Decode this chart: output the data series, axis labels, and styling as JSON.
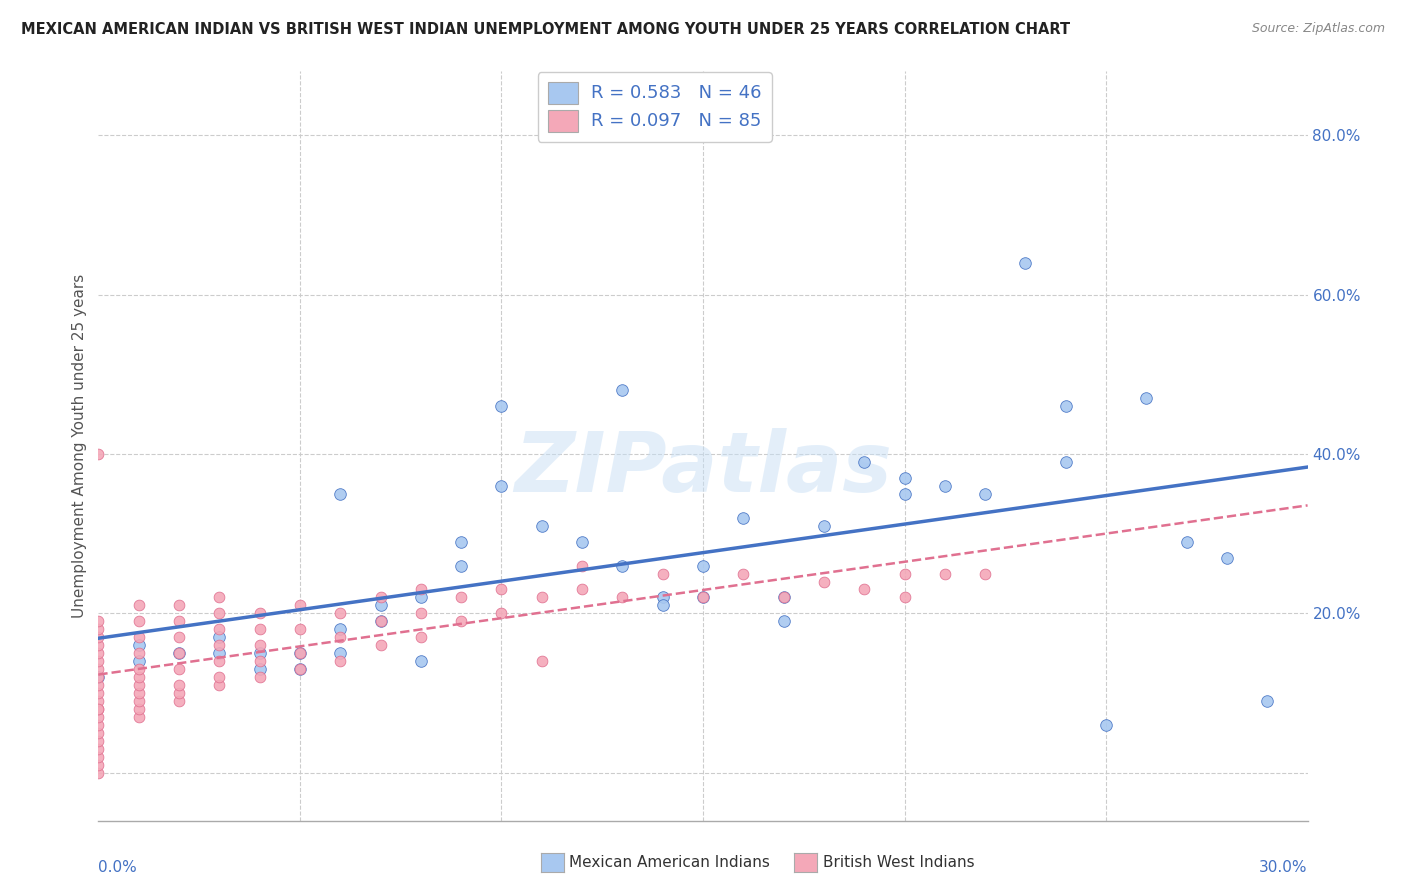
{
  "title": "MEXICAN AMERICAN INDIAN VS BRITISH WEST INDIAN UNEMPLOYMENT AMONG YOUTH UNDER 25 YEARS CORRELATION CHART",
  "source": "Source: ZipAtlas.com",
  "ylabel": "Unemployment Among Youth under 25 years",
  "xlim": [
    0.0,
    0.3
  ],
  "ylim": [
    -0.06,
    0.88
  ],
  "color_blue": "#A8C8F0",
  "color_pink": "#F4A8B8",
  "color_blue_line": "#4472C4",
  "color_pink_line": "#E07090",
  "color_text_blue": "#4472C4",
  "legend_label1": "Mexican American Indians",
  "legend_label2": "British West Indians",
  "blue_x": [
    0.0,
    0.01,
    0.01,
    0.02,
    0.03,
    0.03,
    0.04,
    0.04,
    0.05,
    0.05,
    0.06,
    0.06,
    0.07,
    0.07,
    0.08,
    0.08,
    0.09,
    0.09,
    0.1,
    0.1,
    0.11,
    0.12,
    0.13,
    0.14,
    0.14,
    0.15,
    0.16,
    0.17,
    0.17,
    0.18,
    0.19,
    0.2,
    0.2,
    0.21,
    0.22,
    0.23,
    0.24,
    0.25,
    0.26,
    0.27,
    0.28,
    0.29,
    0.13,
    0.15,
    0.06,
    0.24
  ],
  "blue_y": [
    0.12,
    0.14,
    0.16,
    0.15,
    0.15,
    0.17,
    0.13,
    0.15,
    0.13,
    0.15,
    0.15,
    0.18,
    0.19,
    0.21,
    0.14,
    0.22,
    0.26,
    0.29,
    0.36,
    0.46,
    0.31,
    0.29,
    0.26,
    0.22,
    0.21,
    0.22,
    0.32,
    0.19,
    0.22,
    0.31,
    0.39,
    0.37,
    0.35,
    0.36,
    0.35,
    0.64,
    0.39,
    0.06,
    0.47,
    0.29,
    0.27,
    0.09,
    0.48,
    0.26,
    0.35,
    0.46
  ],
  "pink_x": [
    0.0,
    0.0,
    0.0,
    0.0,
    0.0,
    0.0,
    0.0,
    0.0,
    0.0,
    0.0,
    0.0,
    0.0,
    0.0,
    0.0,
    0.0,
    0.0,
    0.0,
    0.0,
    0.0,
    0.0,
    0.0,
    0.01,
    0.01,
    0.01,
    0.01,
    0.01,
    0.01,
    0.01,
    0.01,
    0.01,
    0.01,
    0.01,
    0.02,
    0.02,
    0.02,
    0.02,
    0.02,
    0.02,
    0.02,
    0.02,
    0.03,
    0.03,
    0.03,
    0.03,
    0.03,
    0.03,
    0.03,
    0.04,
    0.04,
    0.04,
    0.04,
    0.04,
    0.05,
    0.05,
    0.05,
    0.05,
    0.06,
    0.06,
    0.06,
    0.07,
    0.07,
    0.07,
    0.08,
    0.08,
    0.08,
    0.09,
    0.09,
    0.1,
    0.1,
    0.11,
    0.12,
    0.12,
    0.13,
    0.14,
    0.15,
    0.16,
    0.17,
    0.18,
    0.19,
    0.2,
    0.2,
    0.21,
    0.22,
    0.0,
    0.11
  ],
  "pink_y": [
    0.4,
    0.0,
    0.01,
    0.02,
    0.03,
    0.04,
    0.05,
    0.06,
    0.07,
    0.08,
    0.09,
    0.1,
    0.11,
    0.12,
    0.13,
    0.14,
    0.15,
    0.16,
    0.17,
    0.18,
    0.19,
    0.07,
    0.08,
    0.09,
    0.1,
    0.11,
    0.12,
    0.13,
    0.15,
    0.17,
    0.19,
    0.21,
    0.09,
    0.1,
    0.11,
    0.13,
    0.15,
    0.17,
    0.19,
    0.21,
    0.11,
    0.12,
    0.14,
    0.16,
    0.18,
    0.2,
    0.22,
    0.12,
    0.14,
    0.16,
    0.18,
    0.2,
    0.13,
    0.15,
    0.18,
    0.21,
    0.14,
    0.17,
    0.2,
    0.16,
    0.19,
    0.22,
    0.17,
    0.2,
    0.23,
    0.19,
    0.22,
    0.2,
    0.23,
    0.22,
    0.23,
    0.26,
    0.22,
    0.25,
    0.22,
    0.25,
    0.22,
    0.24,
    0.23,
    0.22,
    0.25,
    0.25,
    0.25,
    0.08,
    0.14
  ]
}
